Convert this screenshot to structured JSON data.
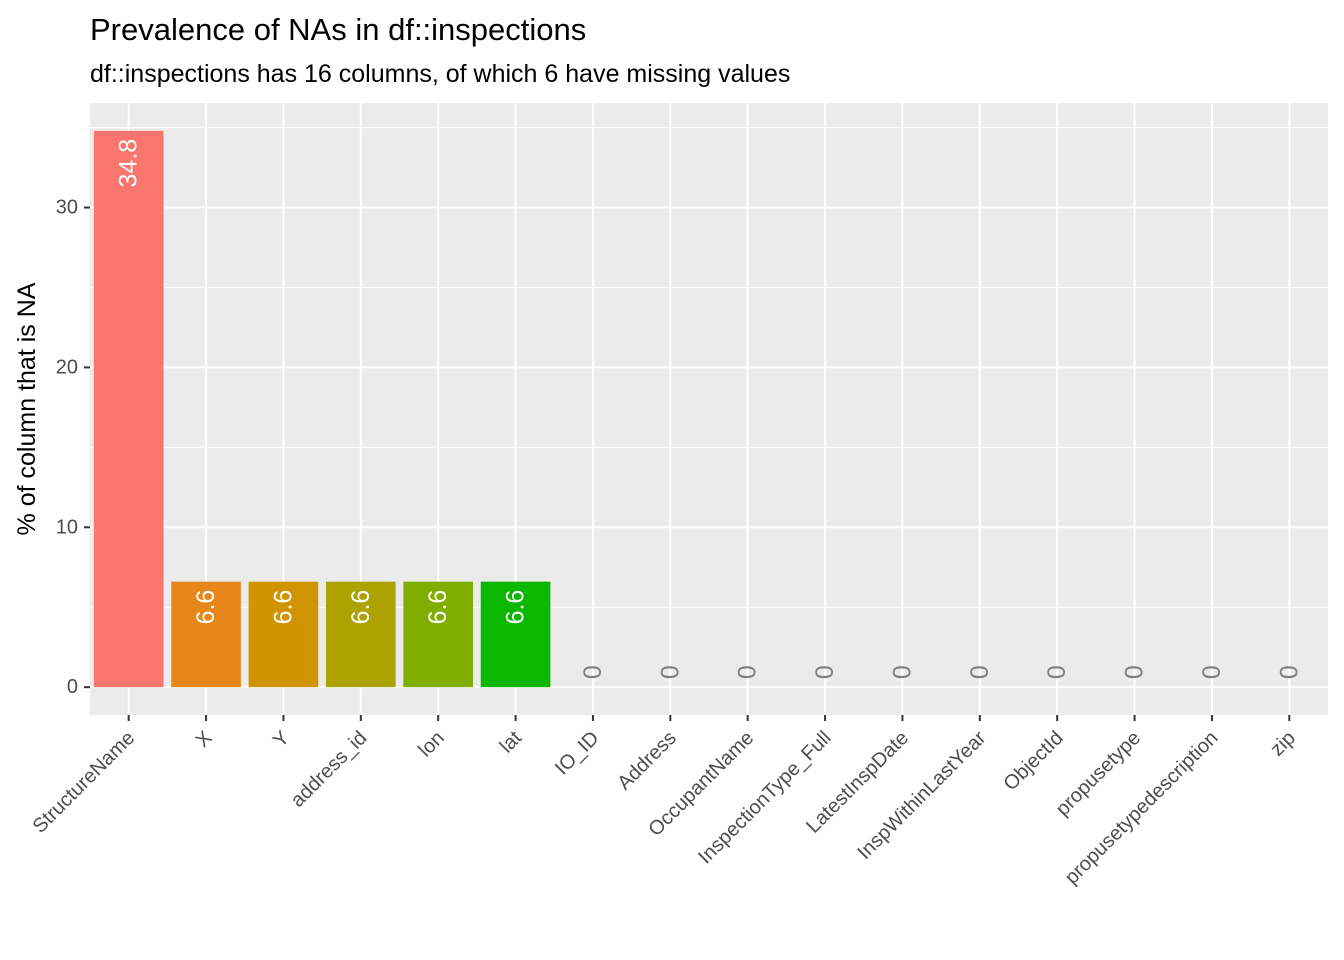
{
  "title": "Prevalence of NAs in df::inspections",
  "subtitle": "df::inspections has 16 columns, of which 6 have missing values",
  "chart_data": {
    "type": "bar",
    "ylabel": "% of column that is NA",
    "xlabel": "",
    "ylim": [
      -1.74,
      36.54
    ],
    "yticks": [
      0,
      10,
      20,
      30
    ],
    "grid": true,
    "legend": "none",
    "categories": [
      "StructureName",
      "X",
      "Y",
      "address_id",
      "lon",
      "lat",
      "IO_ID",
      "Address",
      "OccupantName",
      "InspectionType_Full",
      "LatestInspDate",
      "InspWithinLastYear",
      "ObjectId",
      "propusetype",
      "propusetypedescription",
      "zip"
    ],
    "values": [
      34.8,
      6.6,
      6.6,
      6.6,
      6.6,
      6.6,
      0,
      0,
      0,
      0,
      0,
      0,
      0,
      0,
      0,
      0
    ],
    "data_labels": [
      "34.8",
      "6.6",
      "6.6",
      "6.6",
      "6.6",
      "6.6",
      "0",
      "0",
      "0",
      "0",
      "0",
      "0",
      "0",
      "0",
      "0",
      "0"
    ],
    "colors": [
      "#F8766D",
      "#E7861B",
      "#D09400",
      "#ACA300",
      "#7FAD00",
      "#0CB702",
      "#0CB702",
      "#0CB702",
      "#0CB702",
      "#0CB702",
      "#0CB702",
      "#0CB702",
      "#0CB702",
      "#0CB702",
      "#0CB702",
      "#0CB702"
    ],
    "panel_background": "#EBEBEB",
    "gridline_color": "#FFFFFF",
    "label_on_bar_color": "#FFFFFF",
    "label_zero_color": "#7F7F7F"
  }
}
